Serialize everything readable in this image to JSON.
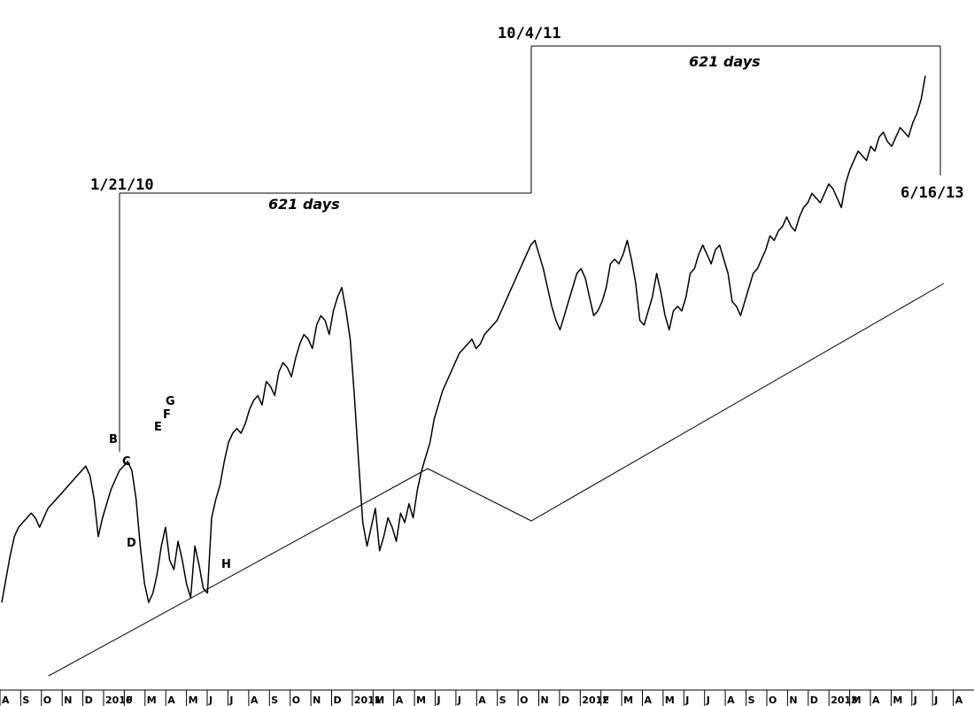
{
  "chart_data": {
    "type": "line",
    "title": "",
    "xlabel": "",
    "ylabel": "",
    "grid": false,
    "x_axis_ticks": [
      "A",
      "S",
      "O",
      "N",
      "D",
      "2010",
      "F",
      "M",
      "A",
      "M",
      "J",
      "J",
      "A",
      "S",
      "O",
      "N",
      "D",
      "2011",
      "M",
      "A",
      "M",
      "J",
      "J",
      "A",
      "S",
      "O",
      "N",
      "D",
      "2012",
      "F",
      "M",
      "A",
      "M",
      "J",
      "J",
      "A",
      "S",
      "O",
      "N",
      "D",
      "2013",
      "M",
      "A",
      "M",
      "J",
      "J",
      "A"
    ],
    "series": [
      {
        "values": [
          66,
          71,
          76,
          80,
          82,
          83,
          84,
          85,
          84,
          82,
          84,
          86,
          87,
          88,
          89,
          90,
          91,
          92,
          93,
          94,
          95,
          93,
          88,
          80,
          84,
          87,
          90,
          92,
          94,
          95,
          96,
          94,
          88,
          78,
          70,
          66,
          68,
          72,
          78,
          82,
          75,
          73,
          79,
          75,
          70,
          67,
          78,
          74,
          69,
          68,
          84,
          88,
          91,
          96,
          100,
          102,
          103,
          102,
          104,
          107,
          109,
          110,
          108,
          113,
          112,
          110,
          115,
          117,
          116,
          114,
          118,
          121,
          123,
          122,
          120,
          125,
          127,
          126,
          123,
          128,
          131,
          133,
          128,
          122,
          110,
          96,
          83,
          78,
          82,
          86,
          77,
          80,
          84,
          82,
          79,
          85,
          83,
          87,
          84,
          90,
          94,
          97,
          100,
          105,
          108,
          111,
          113,
          115,
          117,
          119,
          120,
          121,
          122,
          120,
          121,
          123,
          124,
          125,
          126,
          128,
          130,
          132,
          134,
          136,
          138,
          140,
          142,
          143,
          140,
          137,
          133,
          129,
          126,
          124,
          127,
          130,
          133,
          136,
          137,
          135,
          131,
          127,
          128,
          130,
          133,
          138,
          139,
          138,
          140,
          143,
          139,
          134,
          126,
          125,
          128,
          131,
          136,
          132,
          127,
          124,
          128,
          129,
          128,
          131,
          136,
          137,
          140,
          142,
          140,
          138,
          141,
          142,
          139,
          136,
          130,
          129,
          127,
          130,
          133,
          136,
          137,
          139,
          141,
          144,
          143,
          145,
          146,
          148,
          146,
          145,
          148,
          150,
          151,
          153,
          152,
          151,
          153,
          155,
          154,
          152,
          150,
          155,
          158,
          160,
          162,
          161,
          160,
          163,
          162,
          165,
          166,
          164,
          163,
          165,
          167,
          166,
          165,
          168,
          170,
          173,
          178
        ]
      }
    ],
    "annotations": {
      "pivot_date_1": "1/21/10",
      "pivot_date_2": "10/4/11",
      "target_date": "6/16/13",
      "span_label_1": "621 days",
      "span_label_2": "621 days",
      "wave_labels": [
        "B",
        "C",
        "D",
        "E",
        "F",
        "G",
        "H"
      ]
    },
    "line_color": "#000000",
    "background": "#ffffff"
  }
}
